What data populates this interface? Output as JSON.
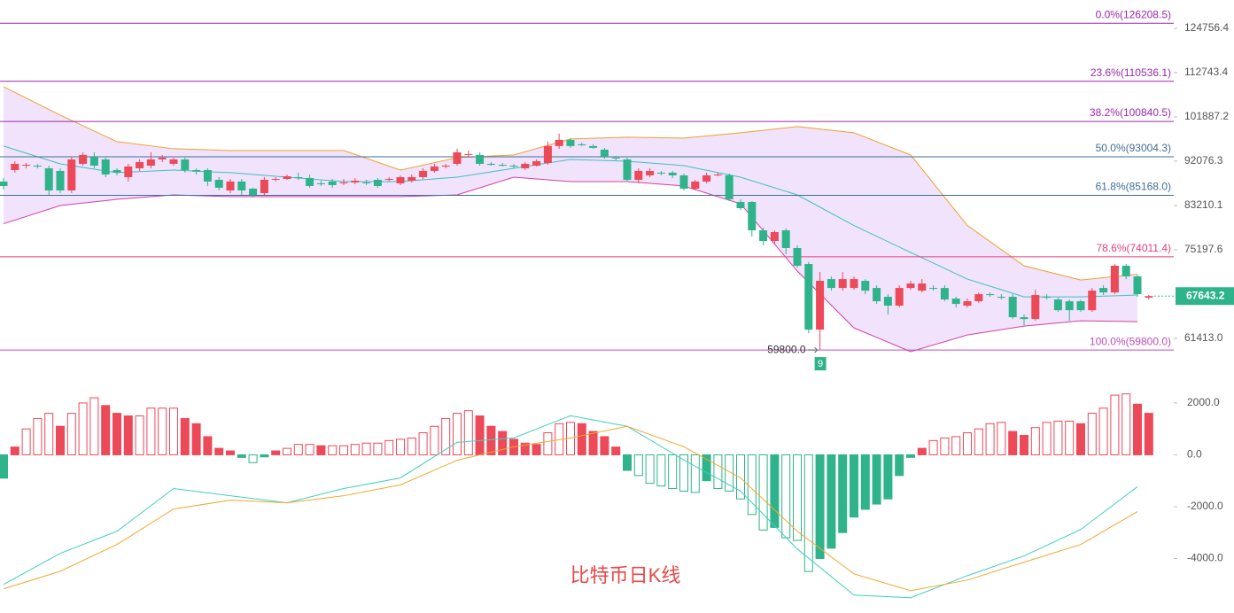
{
  "caption": "比特币日K线",
  "chart_data": [
    {
      "type": "candlestick",
      "log_scale": true,
      "up_color": "#ec4959",
      "down_color": "#2fb38b",
      "ylim": [
        56860,
        133100
      ],
      "yticks": [
        124756.4,
        112743.4,
        101887.2,
        92076.3,
        83210.1,
        75197.6,
        {
          "value": 61413,
          "label": "61413.0"
        }
      ],
      "last_price": 67643.2,
      "last_price_color": "#2fb38b",
      "low_annotation": {
        "value": 59800,
        "label": "59800.0"
      },
      "count_marker": "9",
      "fib_levels": [
        {
          "label": "0.0%(126208.5)",
          "value": 126208.5,
          "color": "#9c27b0"
        },
        {
          "label": "23.6%(110536.1)",
          "value": 110536.1,
          "color": "#9c27b0"
        },
        {
          "label": "38.2%(100840.5)",
          "value": 100840.5,
          "color": "#9c27b0"
        },
        {
          "label": "50.0%(93004.3)",
          "value": 93004.3,
          "color": "#3f6f9a"
        },
        {
          "label": "61.8%(85168.0)",
          "value": 85168.0,
          "color": "#3f6f9a"
        },
        {
          "label": "78.6%(74011.4)",
          "value": 74011.4,
          "color": "#e0407e"
        },
        {
          "label": "100.0%(59800.0)",
          "value": 59800.0,
          "color": "#c04bc0"
        }
      ],
      "open": [
        87890,
        90230,
        91140,
        91140,
        90600,
        90050,
        86120,
        91520,
        93000,
        92450,
        90230,
        88780,
        90600,
        91140,
        92450,
        91520,
        92450,
        90230,
        90230,
        88240,
        86120,
        87890,
        86470,
        85600,
        88240,
        88420,
        88780,
        88600,
        87530,
        87890,
        87530,
        87710,
        87710,
        88240,
        88240,
        87530,
        88060,
        88780,
        90050,
        90970,
        91520,
        93400,
        93400,
        91520,
        91320,
        91140,
        90600,
        91140,
        91700,
        95320,
        96670,
        95700,
        95320,
        94540,
        92830,
        92450,
        88240,
        89140,
        89690,
        89690,
        89140,
        86470,
        87890,
        89140,
        89140,
        83880,
        83880,
        78620,
        76730,
        78620,
        75500,
        72790,
        62650,
        70320,
        68910,
        68910,
        70040,
        68910,
        67530,
        66180,
        68910,
        68490,
        68910,
        68910,
        67260,
        66180,
        66850,
        67940,
        67530,
        67530,
        64460,
        64190,
        67530,
        67120,
        66850,
        66850,
        65500,
        68910,
        68210,
        72500,
        70750,
        67400
      ],
      "high": [
        88600,
        92080,
        91700,
        91500,
        91140,
        90600,
        93000,
        93970,
        93970,
        92830,
        90600,
        91520,
        92450,
        93970,
        93400,
        92830,
        92830,
        90600,
        90600,
        88780,
        88420,
        88420,
        86650,
        88780,
        88780,
        89320,
        89690,
        89320,
        88060,
        88420,
        88420,
        88600,
        88240,
        88600,
        88780,
        89140,
        89320,
        90600,
        91520,
        91520,
        94730,
        94350,
        93970,
        91890,
        91700,
        91520,
        91890,
        92450,
        96280,
        98060,
        97060,
        96090,
        95700,
        94930,
        93210,
        92830,
        90600,
        90600,
        90050,
        90050,
        89500,
        88240,
        89690,
        89690,
        89500,
        84390,
        84050,
        79100,
        78620,
        78960,
        75960,
        73150,
        71470,
        70750,
        71470,
        70750,
        70320,
        69330,
        67940,
        69330,
        70040,
        70320,
        69330,
        69330,
        67530,
        67260,
        68210,
        68210,
        67940,
        67940,
        64860,
        68630,
        67940,
        67400,
        67120,
        67120,
        68910,
        69330,
        72790,
        72790,
        71020,
        67810
      ],
      "low": [
        86300,
        89700,
        90600,
        90600,
        85250,
        85600,
        85600,
        91140,
        90600,
        88780,
        89140,
        87890,
        90050,
        90600,
        91890,
        91140,
        89690,
        89320,
        87000,
        86120,
        85600,
        85250,
        84700,
        85250,
        87890,
        88240,
        88240,
        86650,
        87000,
        86650,
        87180,
        87360,
        87180,
        86650,
        87890,
        87180,
        87710,
        88420,
        89690,
        90600,
        91140,
        92830,
        91140,
        91140,
        90970,
        90600,
        90230,
        90970,
        91320,
        94730,
        94930,
        95320,
        94730,
        92640,
        92270,
        87890,
        87530,
        88780,
        89140,
        88600,
        86120,
        86120,
        87530,
        88960,
        84050,
        82370,
        77510,
        75960,
        76270,
        74430,
        72200,
        62140,
        59800,
        68490,
        68490,
        68630,
        67940,
        66440,
        64860,
        65910,
        68630,
        68210,
        68490,
        66850,
        65910,
        65910,
        66580,
        67530,
        67120,
        64190,
        63290,
        63930,
        67120,
        65240,
        63930,
        65240,
        65240,
        67810,
        67940,
        70320,
        67530,
        67120
      ],
      "close": [
        87000,
        91520,
        91320,
        91000,
        86120,
        86120,
        92450,
        93400,
        91140,
        89320,
        89690,
        90970,
        91890,
        92450,
        92830,
        92450,
        90230,
        89900,
        87890,
        86650,
        87890,
        86120,
        85250,
        88240,
        88420,
        88960,
        88600,
        87000,
        87360,
        87180,
        87710,
        88060,
        87530,
        87000,
        88420,
        88780,
        88780,
        90050,
        90970,
        91140,
        93970,
        93590,
        91520,
        91320,
        91140,
        90970,
        91520,
        92080,
        95320,
        96670,
        95320,
        95500,
        94930,
        93020,
        92640,
        88240,
        90050,
        90050,
        89500,
        89140,
        86470,
        87890,
        89140,
        89320,
        84390,
        82700,
        78620,
        76730,
        78300,
        75500,
        72500,
        62650,
        70040,
        68910,
        70320,
        70320,
        68490,
        66850,
        66180,
        68910,
        69610,
        69610,
        68770,
        67120,
        66440,
        66850,
        67940,
        67810,
        67400,
        64460,
        64190,
        67810,
        67400,
        65500,
        65500,
        65500,
        68490,
        68210,
        72500,
        70750,
        67940,
        67643.2
      ],
      "band_fill": "#f1e3fb",
      "bands": [
        {
          "color": "#f0a030",
          "x": [
            0,
            5,
            10,
            15,
            20,
            25,
            30,
            35,
            40,
            45,
            50,
            55,
            60,
            65,
            70,
            75,
            80,
            85,
            90,
            95,
            100
          ],
          "values": [
            109150,
            102300,
            96280,
            94730,
            94350,
            94350,
            94350,
            90230,
            92830,
            93400,
            96870,
            97260,
            97060,
            98260,
            99660,
            98260,
            93400,
            79490,
            72500,
            70180,
            71110
          ]
        },
        {
          "color": "#3fbfc0",
          "x": [
            0,
            5,
            10,
            15,
            20,
            25,
            30,
            35,
            40,
            45,
            50,
            55,
            60,
            65,
            70,
            75,
            80,
            85,
            90,
            95,
            100
          ],
          "values": [
            95320,
            91520,
            89690,
            90230,
            89690,
            88780,
            87890,
            87890,
            88780,
            90600,
            92450,
            92076,
            91140,
            88780,
            85250,
            79490,
            74740,
            70320,
            67530,
            67530,
            67810
          ]
        },
        {
          "color": "#d63fa7",
          "x": [
            0,
            5,
            10,
            15,
            20,
            25,
            30,
            35,
            40,
            45,
            50,
            55,
            60,
            65,
            70,
            75,
            80,
            85,
            90,
            95,
            100
          ],
          "values": [
            79810,
            83210,
            84390,
            85250,
            84910,
            84910,
            84910,
            84910,
            85250,
            88780,
            87890,
            87890,
            87000,
            83540,
            71620,
            62900,
            59580,
            61890,
            63160,
            63930,
            63800
          ]
        }
      ]
    },
    {
      "type": "macd",
      "pos_color": "#ec4959",
      "neg_color": "#2fb38b",
      "ylim": [
        -6100,
        2850
      ],
      "yticks": [
        {
          "value": 2000,
          "label": "2000.0"
        },
        {
          "value": 0,
          "label": "0.0"
        },
        {
          "value": -2000,
          "label": "-2000.0"
        },
        {
          "value": -4000,
          "label": "-4000.0"
        }
      ],
      "histogram": [
        -900,
        300,
        1000,
        1400,
        1600,
        1100,
        1600,
        2000,
        2200,
        1900,
        1600,
        1500,
        1500,
        1800,
        1800,
        1800,
        1400,
        1200,
        700,
        250,
        150,
        -100,
        -300,
        -80,
        150,
        250,
        400,
        400,
        350,
        350,
        350,
        400,
        450,
        450,
        550,
        600,
        650,
        850,
        1100,
        1400,
        1600,
        1700,
        1500,
        1100,
        900,
        600,
        450,
        400,
        850,
        1200,
        1250,
        1200,
        900,
        700,
        300,
        -600,
        -800,
        -1100,
        -1200,
        -1300,
        -1400,
        -1450,
        -1000,
        -1300,
        -1400,
        -1700,
        -2300,
        -2900,
        -2800,
        -3200,
        -3300,
        -4500,
        -4000,
        -3600,
        -3000,
        -2400,
        -2100,
        -1900,
        -1700,
        -800,
        -100,
        250,
        550,
        650,
        700,
        850,
        1000,
        1200,
        1250,
        900,
        750,
        1050,
        1250,
        1300,
        1300,
        1200,
        1600,
        1800,
        2300,
        2350,
        1950,
        1600
      ],
      "series": [
        {
          "color": "#3fcfc0",
          "x": [
            0,
            5,
            10,
            15,
            20,
            25,
            30,
            35,
            40,
            45,
            50,
            55,
            60,
            65,
            70,
            75,
            80,
            85,
            90,
            95,
            100
          ],
          "values": [
            -5000,
            -3800,
            -2950,
            -1300,
            -1580,
            -1850,
            -1300,
            -890,
            480,
            650,
            1510,
            1100,
            -200,
            -1400,
            -3630,
            -5410,
            -5510,
            -4660,
            -3900,
            -2880,
            -1230
          ]
        },
        {
          "color": "#f0a830",
          "x": [
            0,
            5,
            10,
            15,
            20,
            25,
            30,
            35,
            40,
            45,
            50,
            55,
            60,
            65,
            70,
            75,
            80,
            85,
            90,
            95,
            100
          ],
          "values": [
            -5170,
            -4490,
            -3460,
            -2090,
            -1750,
            -1850,
            -1580,
            -1160,
            -210,
            310,
            650,
            1100,
            310,
            -890,
            -2950,
            -4590,
            -5240,
            -4830,
            -4140,
            -3460,
            -2190
          ]
        }
      ]
    }
  ]
}
